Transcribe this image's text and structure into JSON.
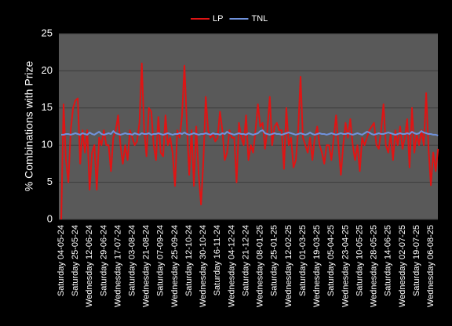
{
  "chart_data": {
    "type": "line",
    "y_label": "% Combinations with Prize",
    "categories": [
      "Saturday 04-05-24",
      null,
      null,
      null,
      null,
      null,
      "Saturday 25-05-24",
      null,
      null,
      null,
      null,
      null,
      "Wednesday 12-06-24",
      null,
      null,
      null,
      null,
      null,
      "Saturday 29-06-24",
      null,
      null,
      null,
      null,
      null,
      "Wednesday 17-07-24",
      null,
      null,
      null,
      null,
      null,
      "Saturday 03-08-24",
      null,
      null,
      null,
      null,
      null,
      "Wednesday 21-08-24",
      null,
      null,
      null,
      null,
      null,
      "Saturday 07-09-24",
      null,
      null,
      null,
      null,
      null,
      "Wednesday 25-09-24",
      null,
      null,
      null,
      null,
      null,
      "Saturday 12-10-24",
      null,
      null,
      null,
      null,
      null,
      "Wednesday 30-10-24",
      null,
      null,
      null,
      null,
      null,
      "Saturday 16-11-24",
      null,
      null,
      null,
      null,
      null,
      "Wednesday 04-12-24",
      null,
      null,
      null,
      null,
      null,
      "Saturday 21-12-24",
      null,
      null,
      null,
      null,
      null,
      "Wednesday 08-01-25",
      null,
      null,
      null,
      null,
      null,
      "Saturday 25-01-25",
      null,
      null,
      null,
      null,
      null,
      "Wednesday 12-02-25",
      null,
      null,
      null,
      null,
      null,
      "Saturday 01-03-25",
      null,
      null,
      null,
      null,
      null,
      "Wednesday 19-03-25",
      null,
      null,
      null,
      null,
      null,
      "Saturday 05-04-25",
      null,
      null,
      null,
      null,
      null,
      "Wednesday 23-04-25",
      null,
      null,
      null,
      null,
      null,
      "Saturday 10-05-25",
      null,
      null,
      null,
      null,
      null,
      "Wednesday 28-05-25",
      null,
      null,
      null,
      null,
      null,
      "Saturday 14-06-25",
      null,
      null,
      null,
      null,
      null,
      "Wednesday 02-07-25",
      null,
      null,
      null,
      null,
      null,
      "Saturday 19-07-25",
      null,
      null,
      null,
      null,
      null,
      "Wednesday 06-08-25",
      null,
      null,
      null
    ],
    "series": [
      {
        "name": "LP",
        "color": "#e01414",
        "values": [
          0,
          15.5,
          8,
          5,
          12,
          15,
          16,
          16.3,
          7.5,
          12,
          9,
          12,
          4,
          9,
          10,
          4,
          11,
          10,
          12,
          10,
          10,
          6.5,
          11,
          12,
          14,
          10,
          7.5,
          10,
          8,
          12,
          11,
          10,
          10.5,
          13,
          21,
          12,
          8.5,
          15,
          14.5,
          10,
          8,
          13.8,
          9,
          8.5,
          14,
          10,
          11,
          9,
          4.5,
          12,
          11,
          14,
          20.7,
          13,
          6,
          12,
          4.5,
          12.5,
          6,
          2,
          8,
          16.5,
          12,
          11,
          11.5,
          10.5,
          11,
          14.5,
          12,
          8,
          9,
          12,
          11,
          11,
          5,
          13,
          11,
          10,
          14,
          8,
          10,
          9,
          12,
          15.5,
          12.5,
          13,
          9.5,
          12,
          16.5,
          10,
          12.5,
          13,
          12,
          12,
          6.8,
          15,
          10,
          11,
          7,
          8,
          12,
          19.2,
          11,
          10,
          9,
          11,
          8,
          11,
          12.5,
          10,
          9,
          7.5,
          10,
          10,
          8,
          11,
          14,
          10,
          6,
          10,
          13,
          11,
          13.5,
          10,
          8,
          10,
          6.5,
          11,
          10,
          11,
          12,
          12.5,
          13,
          10,
          9.5,
          12,
          15.5,
          10,
          9,
          11.5,
          8,
          12,
          10,
          12.5,
          9.5,
          11,
          13.5,
          7,
          15,
          9,
          11.5,
          10,
          12,
          10,
          17,
          9.5,
          4.6,
          9,
          6.5,
          9.5
        ]
      },
      {
        "name": "TNL",
        "color": "#7092dc",
        "values": [
          11.4,
          11.4,
          11.5,
          11.5,
          11.4,
          11.5,
          11.6,
          11.5,
          11.4,
          11.6,
          11.5,
          11.4,
          11.7,
          11.5,
          11.4,
          11.6,
          11.8,
          11.5,
          11.4,
          11.5,
          11.6,
          11.5,
          11.9,
          11.6,
          11.5,
          11.4,
          11.5,
          11.6,
          11.5,
          11.5,
          11.4,
          11.6,
          11.5,
          11.4,
          11.6,
          11.5,
          11.5,
          11.6,
          11.4,
          11.5,
          11.5,
          11.6,
          11.5,
          11.4,
          11.5,
          11.6,
          11.5,
          11.4,
          11.5,
          11.5,
          11.6,
          11.5,
          11.7,
          11.5,
          11.4,
          11.5,
          11.6,
          11.5,
          11.4,
          11.5,
          11.5,
          11.6,
          11.5,
          11.4,
          11.6,
          11.5,
          11.5,
          11.4,
          11.6,
          11.5,
          11.8,
          11.6,
          11.5,
          11.4,
          11.5,
          11.6,
          11.5,
          11.5,
          11.4,
          11.6,
          11.5,
          11.4,
          11.5,
          11.6,
          11.9,
          12,
          11.6,
          11.5,
          11.4,
          11.5,
          11.6,
          11.5,
          11.5,
          11.4,
          11.5,
          11.6,
          11.7,
          11.6,
          11.5,
          11.4,
          11.5,
          11.6,
          11.5,
          11.4,
          11.5,
          11.7,
          11.5,
          11.4,
          11.5,
          11.6,
          11.5,
          11.5,
          11.4,
          11.5,
          11.6,
          11.5,
          11.4,
          11.5,
          11.6,
          11.5,
          11.5,
          11.6,
          11.5,
          11.4,
          11.5,
          11.6,
          11.5,
          11.4,
          11.6,
          11.8,
          11.7,
          11.5,
          11.4,
          11.5,
          11.6,
          11.5,
          11.5,
          11.6,
          11.7,
          11.6,
          11.5,
          11.4,
          11.5,
          11.6,
          11.5,
          11.5,
          11.6,
          11.5,
          11.8,
          11.6,
          11.5,
          11.6,
          11.9,
          11.7,
          11.6,
          11.5,
          11.5,
          11.4,
          11.4,
          11.3
        ]
      }
    ],
    "ylim": [
      0,
      25
    ],
    "yticks": [
      0,
      5,
      10,
      15,
      20,
      25
    ],
    "grid": true,
    "legend": "top"
  }
}
